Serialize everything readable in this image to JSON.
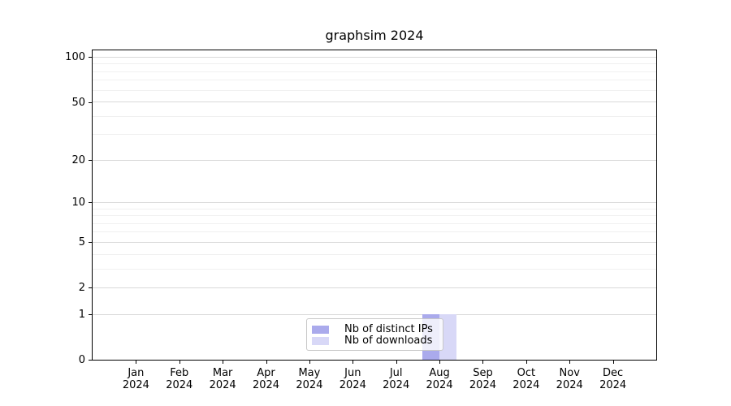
{
  "title": "graphsim 2024",
  "chart_data": {
    "type": "bar",
    "title": "graphsim 2024",
    "categories": [
      "Jan 2024",
      "Feb 2024",
      "Mar 2024",
      "Apr 2024",
      "May 2024",
      "Jun 2024",
      "Jul 2024",
      "Aug 2024",
      "Sep 2024",
      "Oct 2024",
      "Nov 2024",
      "Dec 2024"
    ],
    "series": [
      {
        "name": "Nb of distinct IPs",
        "color": "#aaaaec",
        "values": [
          0,
          0,
          0,
          0,
          0,
          0,
          0,
          1,
          0,
          0,
          0,
          0
        ]
      },
      {
        "name": "Nb of downloads",
        "color": "#d8d8f7",
        "values": [
          0,
          0,
          0,
          0,
          0,
          0,
          0,
          1,
          0,
          0,
          0,
          0
        ]
      }
    ],
    "yscale": "log1p",
    "ylim": [
      0,
      111
    ],
    "y_ticks_major": [
      0,
      1,
      2,
      5,
      10,
      20,
      50,
      100
    ],
    "y_ticks_minor": [
      3,
      4,
      6,
      7,
      8,
      9,
      30,
      40,
      60,
      70,
      80,
      90
    ],
    "grid": true,
    "grid_major_color": "#d9d9d9",
    "grid_minor_color": "#f0f0f0",
    "legend_position": "bottom-center"
  }
}
